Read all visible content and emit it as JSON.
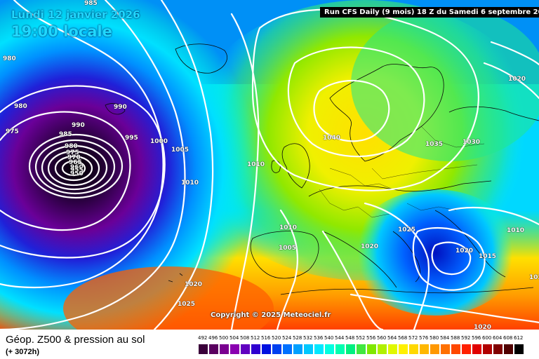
{
  "header": {
    "date": "Lundi 12 janvier 2026",
    "time": "19:00 locale",
    "run": "Run CFS Daily (9 mois) 18 Z du Samedi 6 septembre 20"
  },
  "copyright": "Copyright © 2025 Meteociel.fr",
  "footer": {
    "title": "Géop. Z500 & pression au sol",
    "subtitle": "(+ 3072h)"
  },
  "legend": {
    "values": [
      "492",
      "496",
      "500",
      "504",
      "508",
      "512",
      "516",
      "520",
      "524",
      "528",
      "532",
      "536",
      "540",
      "544",
      "548",
      "552",
      "556",
      "560",
      "564",
      "568",
      "572",
      "576",
      "580",
      "584",
      "588",
      "592",
      "596",
      "600",
      "604",
      "608",
      "612"
    ],
    "colors": [
      "#3a003a",
      "#5a0060",
      "#7a0090",
      "#8a00b0",
      "#6000c0",
      "#3000d0",
      "#0010e0",
      "#0040f0",
      "#0070ff",
      "#00a0ff",
      "#00c8ff",
      "#00e8ff",
      "#00ffe0",
      "#00ffb0",
      "#00f080",
      "#40e840",
      "#80e800",
      "#b0f000",
      "#e0f800",
      "#fff000",
      "#ffd800",
      "#ffb800",
      "#ff9800",
      "#ff7000",
      "#ff4800",
      "#ff2000",
      "#e00000",
      "#b00000",
      "#800000",
      "#500000",
      "#000000"
    ]
  },
  "isobars": {
    "labels": [
      "985",
      "980",
      "980",
      "975",
      "990",
      "985",
      "990",
      "995",
      "1000",
      "980",
      "975",
      "970",
      "965",
      "960",
      "955",
      "950",
      "1005",
      "1010",
      "1010",
      "1010",
      "1005",
      "1015",
      "1020",
      "1025",
      "1040",
      "1035",
      "1030",
      "1020",
      "1025",
      "1020",
      "1020",
      "1015",
      "1010",
      "1020",
      "1025",
      "1020"
    ]
  }
}
